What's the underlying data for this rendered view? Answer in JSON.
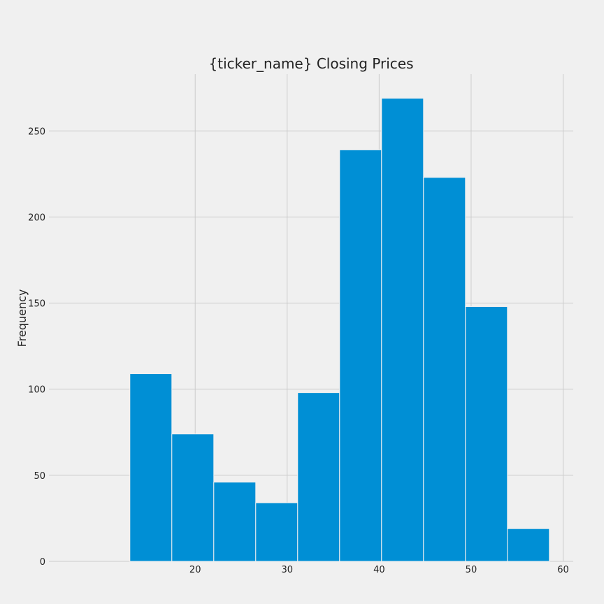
{
  "chart_data": {
    "type": "bar",
    "title": "{ticker_name} Closing Prices",
    "xlabel": "",
    "ylabel": "Frequency",
    "bin_edges": [
      12.9,
      17.46,
      22.02,
      26.58,
      31.14,
      35.7,
      40.26,
      44.82,
      49.38,
      53.94,
      58.5
    ],
    "values": [
      109,
      74,
      46,
      34,
      98,
      239,
      269,
      223,
      148,
      19
    ],
    "xlim": [
      4.1,
      61.1
    ],
    "ylim": [
      0,
      283
    ],
    "x_ticks": [
      20,
      30,
      40,
      50,
      60
    ],
    "y_ticks": [
      0,
      50,
      100,
      150,
      200,
      250
    ],
    "bar_color": "#008fd5",
    "grid": true
  }
}
